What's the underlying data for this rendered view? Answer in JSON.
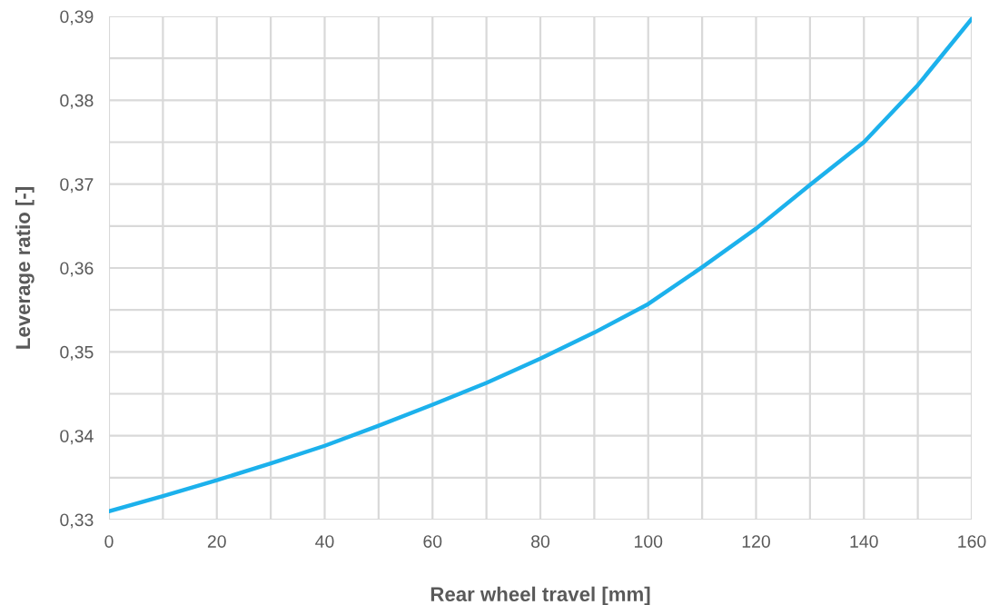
{
  "chart_data": {
    "type": "line",
    "xlabel": "Rear wheel travel [mm]",
    "ylabel": "Leverage ratio [-]",
    "x": [
      0,
      10,
      20,
      30,
      40,
      50,
      60,
      70,
      80,
      90,
      100,
      110,
      120,
      130,
      140,
      150,
      160
    ],
    "series": [
      {
        "color": "#1cb1ec",
        "values": [
          0.331,
          0.3328,
          0.3347,
          0.3367,
          0.3388,
          0.3412,
          0.3437,
          0.3463,
          0.3492,
          0.3523,
          0.3557,
          0.3601,
          0.3647,
          0.3699,
          0.375,
          0.3818,
          0.3897
        ]
      }
    ],
    "xlim": [
      0,
      160
    ],
    "ylim": [
      0.33,
      0.39
    ],
    "xticks": [
      0,
      {
        "value": 10,
        "label": null
      },
      20,
      {
        "value": 30,
        "label": null
      },
      40,
      {
        "value": 50,
        "label": null
      },
      60,
      {
        "value": 70,
        "label": null
      },
      80,
      {
        "value": 90,
        "label": null
      },
      100,
      {
        "value": 110,
        "label": null
      },
      120,
      {
        "value": 130,
        "label": null
      },
      140,
      {
        "value": 150,
        "label": null
      },
      160
    ],
    "yticks": [
      {
        "value": 0.33,
        "label": "0,33"
      },
      {
        "value": 0.335,
        "label": null
      },
      {
        "value": 0.34,
        "label": "0,34"
      },
      {
        "value": 0.345,
        "label": null
      },
      {
        "value": 0.35,
        "label": "0,35"
      },
      {
        "value": 0.355,
        "label": null
      },
      {
        "value": 0.36,
        "label": "0,36"
      },
      {
        "value": 0.365,
        "label": null
      },
      {
        "value": 0.37,
        "label": "0,37"
      },
      {
        "value": 0.375,
        "label": null
      },
      {
        "value": 0.38,
        "label": "0,38"
      },
      {
        "value": 0.385,
        "label": null
      },
      {
        "value": 0.39,
        "label": "0,39"
      }
    ],
    "grid": true,
    "marker": "none",
    "line_style": "solid"
  }
}
